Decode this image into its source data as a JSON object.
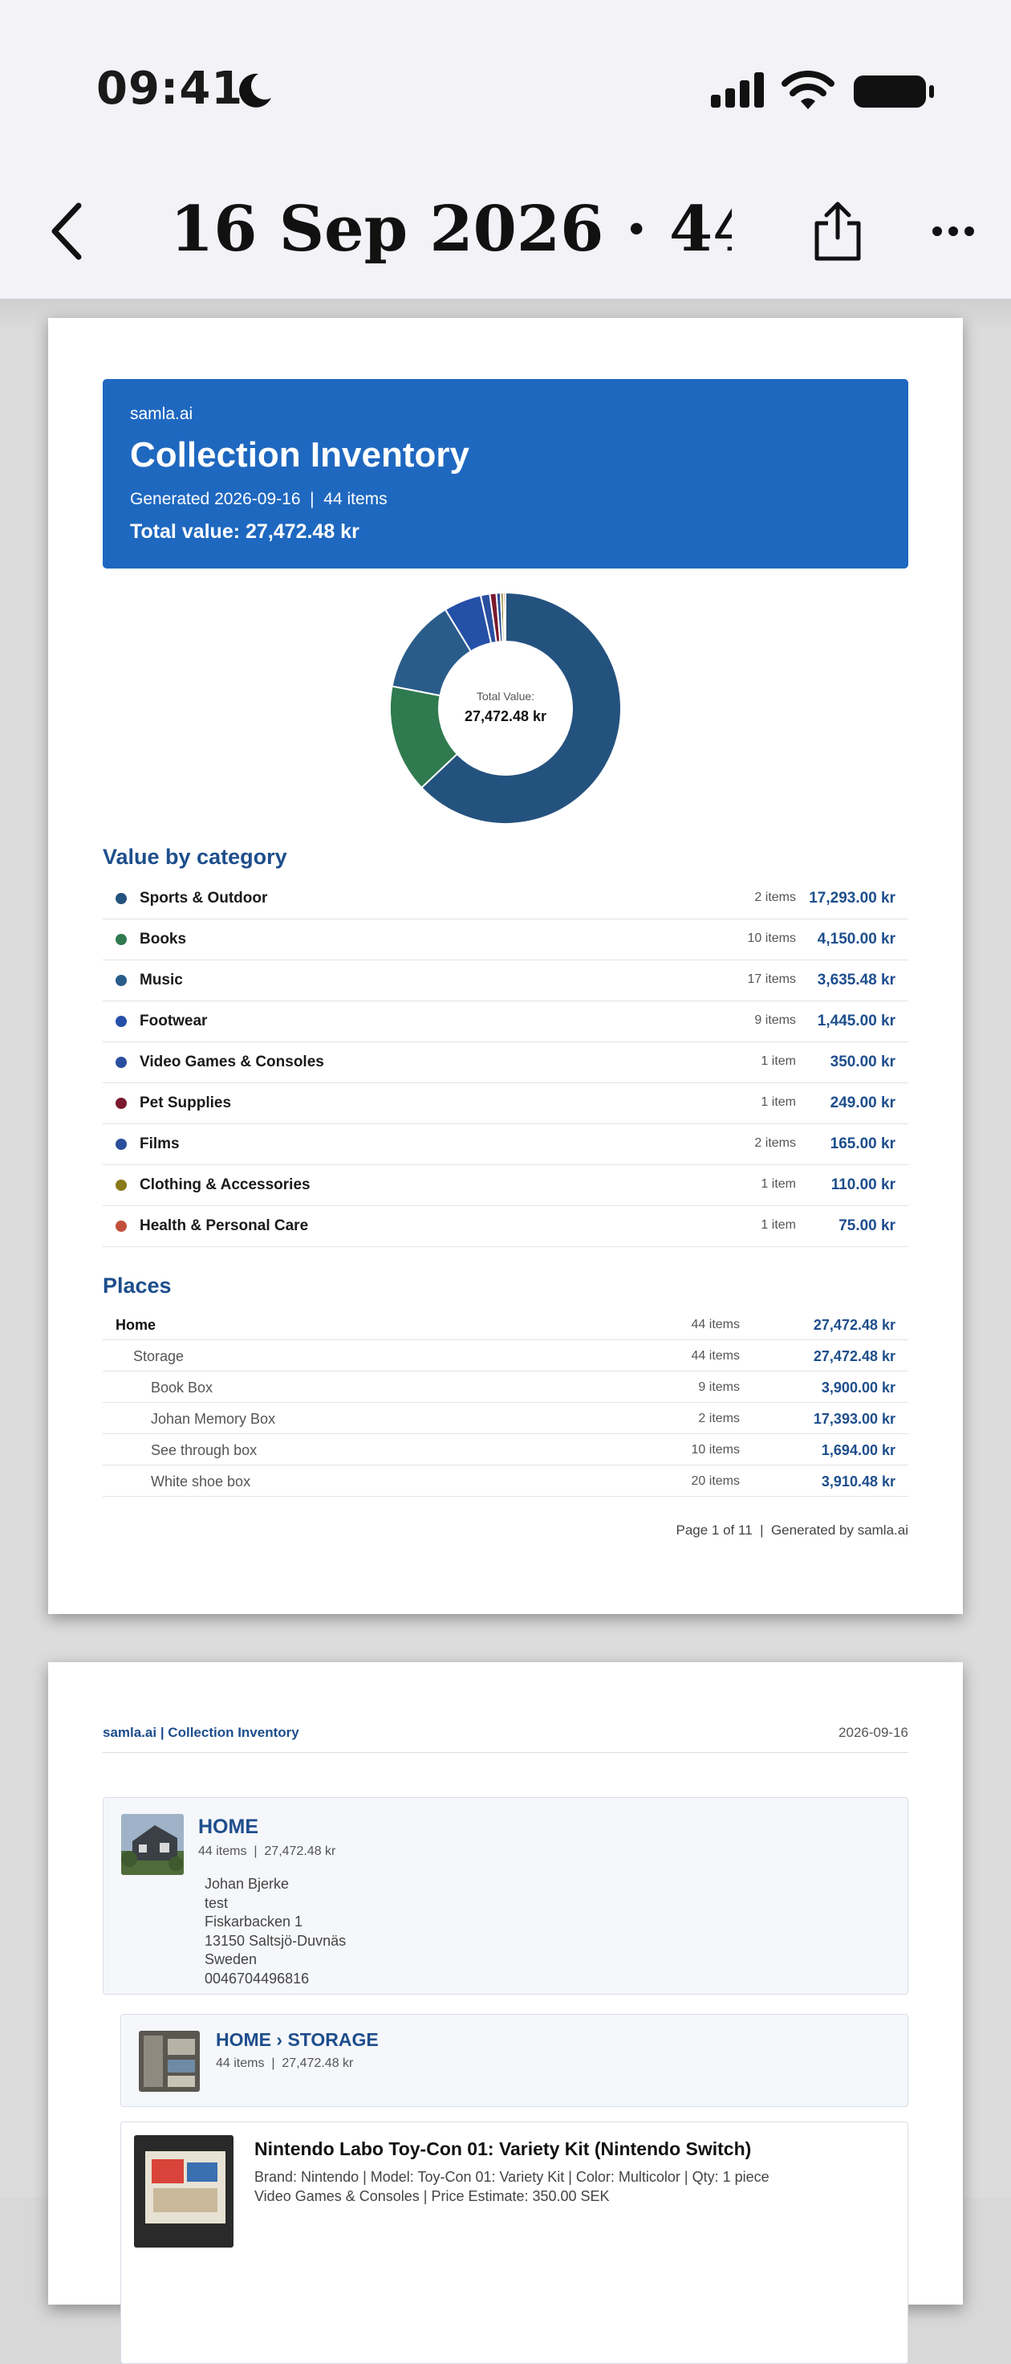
{
  "status": {
    "time": "09:41"
  },
  "nav": {
    "title": "16 Sep 2026 · 44 ..."
  },
  "report": {
    "brand": "samla.ai",
    "title": "Collection Inventory",
    "generated": "Generated 2026-09-16  |  44 items",
    "total": "Total value: 27,472.48 kr",
    "donut_label": "Total Value:",
    "donut_value": "27,472.48 kr",
    "category_heading": "Value by category",
    "categories": [
      {
        "name": "Sports & Outdoor",
        "count": "2 items",
        "value": "17,293.00 kr",
        "amount": 17293.0,
        "color": "#24527e"
      },
      {
        "name": "Books",
        "count": "10 items",
        "value": "4,150.00 kr",
        "amount": 4150.0,
        "color": "#2f7a4f"
      },
      {
        "name": "Music",
        "count": "17 items",
        "value": "3,635.48 kr",
        "amount": 3635.48,
        "color": "#2a5c8a"
      },
      {
        "name": "Footwear",
        "count": "9 items",
        "value": "1,445.00 kr",
        "amount": 1445.0,
        "color": "#2550a8"
      },
      {
        "name": "Video Games & Consoles",
        "count": "1 item",
        "value": "350.00 kr",
        "amount": 350.0,
        "color": "#2a4fa0"
      },
      {
        "name": "Pet Supplies",
        "count": "1 item",
        "value": "249.00 kr",
        "amount": 249.0,
        "color": "#7a1a2e"
      },
      {
        "name": "Films",
        "count": "2 items",
        "value": "165.00 kr",
        "amount": 165.0,
        "color": "#2b4f9a"
      },
      {
        "name": "Clothing & Accessories",
        "count": "1 item",
        "value": "110.00 kr",
        "amount": 110.0,
        "color": "#8a7a1a"
      },
      {
        "name": "Health & Personal Care",
        "count": "1 item",
        "value": "75.00 kr",
        "amount": 75.0,
        "color": "#c0503a"
      }
    ],
    "places_heading": "Places",
    "places": [
      {
        "name": "Home",
        "count": "44 items",
        "value": "27,472.48 kr",
        "level": 0
      },
      {
        "name": "Storage",
        "count": "44 items",
        "value": "27,472.48 kr",
        "level": 1
      },
      {
        "name": "Book Box",
        "count": "9 items",
        "value": "3,900.00 kr",
        "level": 2
      },
      {
        "name": "Johan Memory Box",
        "count": "2 items",
        "value": "17,393.00 kr",
        "level": 2
      },
      {
        "name": "See through box",
        "count": "10 items",
        "value": "1,694.00 kr",
        "level": 2
      },
      {
        "name": "White shoe box",
        "count": "20 items",
        "value": "3,910.48 kr",
        "level": 2
      }
    ],
    "footer": "Page 1 of 11  |  Generated by samla.ai"
  },
  "page2": {
    "header_left": "samla.ai | Collection Inventory",
    "header_right": "2026-09-16",
    "home": {
      "title": "HOME",
      "sub": "44 items  |  27,472.48 kr",
      "address": [
        "Johan Bjerke",
        "test",
        "Fiskarbacken 1",
        "13150 Saltsjö-Duvnäs",
        "Sweden",
        "0046704496816"
      ]
    },
    "storage": {
      "title": "HOME › STORAGE",
      "sub": "44 items  |  27,472.48 kr"
    },
    "item": {
      "title": "Nintendo Labo Toy-Con 01: Variety Kit (Nintendo Switch)",
      "meta1": "Brand: Nintendo | Model: Toy-Con 01: Variety Kit | Color: Multicolor | Qty: 1 piece",
      "meta2": "Video Games & Consoles | Price Estimate: 350.00 SEK"
    }
  }
}
